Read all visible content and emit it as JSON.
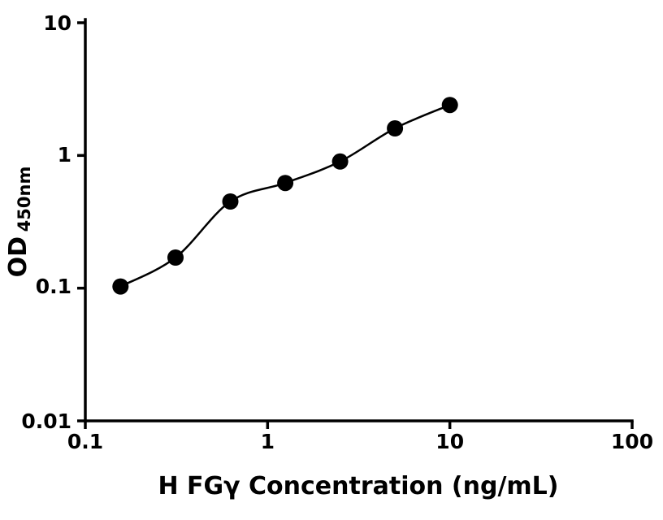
{
  "chart_data": {
    "type": "scatter",
    "title": "",
    "xlabel": "H FGγ Concentration (ng/mL)",
    "ylabel_main": "OD",
    "ylabel_sub": "450nm",
    "x_scale": "log",
    "y_scale": "log",
    "xlim": [
      0.1,
      100
    ],
    "ylim": [
      0.01,
      10
    ],
    "x_ticks": [
      0.1,
      1,
      10,
      100
    ],
    "x_tick_labels": [
      "0.1",
      "1",
      "10",
      "100"
    ],
    "y_ticks": [
      0.01,
      0.1,
      1,
      10
    ],
    "y_tick_labels": [
      "0.01",
      "0.1",
      "1",
      "10"
    ],
    "grid": false,
    "legend": "none",
    "marker_color": "#000000",
    "line_color": "#000000",
    "points": {
      "x": [
        0.156,
        0.3125,
        0.625,
        1.25,
        2.5,
        5,
        10
      ],
      "y": [
        0.103,
        0.17,
        0.45,
        0.62,
        0.9,
        1.6,
        2.4
      ]
    },
    "fit": "smooth curve through points"
  }
}
